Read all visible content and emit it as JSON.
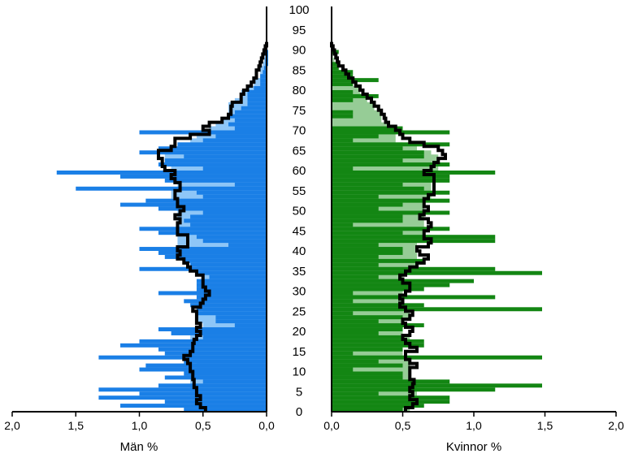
{
  "chart_data": [
    {
      "type": "bar",
      "panel": "left",
      "xlabel": "Män %",
      "xlim": [
        2.0,
        0.0
      ],
      "ylim": [
        0,
        100
      ],
      "xticks": [
        "2,0",
        "1,5",
        "1,0",
        "0,5",
        "0,0"
      ],
      "colors": {
        "dark": "#1a7fe6",
        "light": "#8ec6f7"
      },
      "ages": [
        1,
        2,
        3,
        4,
        5,
        6,
        7,
        8,
        9,
        10,
        11,
        12,
        13,
        14,
        15,
        16,
        17,
        18,
        19,
        20,
        21,
        22,
        23,
        24,
        25,
        26,
        27,
        28,
        29,
        30,
        31,
        32,
        33,
        34,
        35,
        36,
        37,
        38,
        39,
        40,
        41,
        42,
        43,
        44,
        45,
        46,
        47,
        48,
        49,
        50,
        51,
        52,
        53,
        54,
        55,
        56,
        57,
        58,
        59,
        60,
        61,
        62,
        63,
        64,
        65,
        66,
        67,
        68,
        69,
        70,
        71,
        72,
        73,
        74,
        75,
        76,
        77,
        78,
        79,
        80,
        81,
        82,
        83,
        84,
        85,
        86,
        87,
        88,
        89,
        90,
        91,
        92
      ],
      "series": [
        {
          "name": "",
          "values": [
            0.65,
            1.15,
            0.8,
            1.32,
            1.0,
            1.32,
            0.85,
            0.5,
            0.8,
            0.65,
            1.0,
            0.95,
            0.65,
            1.32,
            0.8,
            0.85,
            1.15,
            1.0,
            0.5,
            0.75,
            0.85,
            0.25,
            0.4,
            0.4,
            0.55,
            0.55,
            0.6,
            0.65,
            0.55,
            0.85,
            0.55,
            0.55,
            0.55,
            0.45,
            0.55,
            1.0,
            0.6,
            0.65,
            0.8,
            0.85,
            1.0,
            0.3,
            0.5,
            0.55,
            0.85,
            1.0,
            0.6,
            0.65,
            0.6,
            0.5,
            0.85,
            1.15,
            0.95,
            0.5,
            0.55,
            1.5,
            0.25,
            0.8,
            1.15,
            1.65,
            0.5,
            0.85,
            0.8,
            0.65,
            1.0,
            0.85,
            0.7,
            0.5,
            0.4,
            1.0,
            0.25,
            0.3,
            0.25,
            0.3,
            0.25,
            0.2,
            0.15,
            0.15,
            0.15,
            0.15,
            0.1,
            0.05,
            0.05,
            0.05,
            0.03,
            0.02,
            0.01,
            0.01,
            0.01,
            0.01,
            0.0,
            0.0
          ]
        },
        {
          "name": "",
          "values": [
            0.5,
            0.5,
            0.55,
            0.55,
            0.6,
            0.6,
            0.6,
            0.6,
            0.6,
            0.55,
            0.55,
            0.55,
            0.6,
            0.6,
            0.6,
            0.6,
            0.55,
            0.6,
            0.6,
            0.5,
            0.5,
            0.5,
            0.55,
            0.55,
            0.55,
            0.5,
            0.5,
            0.5,
            0.45,
            0.45,
            0.45,
            0.5,
            0.5,
            0.5,
            0.5,
            0.55,
            0.55,
            0.6,
            0.65,
            0.65,
            0.65,
            0.7,
            0.7,
            0.7,
            0.7,
            0.7,
            0.7,
            0.7,
            0.7,
            0.7,
            0.7,
            0.7,
            0.7,
            0.75,
            0.75,
            0.7,
            0.7,
            0.7,
            0.75,
            0.75,
            0.75,
            0.8,
            0.8,
            0.8,
            0.8,
            0.75,
            0.7,
            0.6,
            0.55,
            0.5,
            0.45,
            0.4,
            0.35,
            0.3,
            0.3,
            0.3,
            0.3,
            0.25,
            0.2,
            0.2,
            0.15,
            0.1,
            0.1,
            0.05,
            0.05,
            0.05,
            0.03,
            0.02,
            0.01,
            0.01,
            0.01,
            0.0
          ]
        }
      ]
    },
    {
      "type": "bar",
      "panel": "right",
      "xlabel": "Kvinnor %",
      "xlim": [
        0.0,
        2.0
      ],
      "ylim": [
        0,
        100
      ],
      "xticks": [
        "0,0",
        "0,5",
        "1,0",
        "1,5",
        "2,0"
      ],
      "colors": {
        "dark": "#138613",
        "light": "#96cc96"
      },
      "ages": [
        1,
        2,
        3,
        4,
        5,
        6,
        7,
        8,
        9,
        10,
        11,
        12,
        13,
        14,
        15,
        16,
        17,
        18,
        19,
        20,
        21,
        22,
        23,
        24,
        25,
        26,
        27,
        28,
        29,
        30,
        31,
        32,
        33,
        34,
        35,
        36,
        37,
        38,
        39,
        40,
        41,
        42,
        43,
        44,
        45,
        46,
        47,
        48,
        49,
        50,
        51,
        52,
        53,
        54,
        55,
        56,
        57,
        58,
        59,
        60,
        61,
        62,
        63,
        64,
        65,
        66,
        67,
        68,
        69,
        70,
        71,
        72,
        73,
        74,
        75,
        76,
        77,
        78,
        79,
        80,
        81,
        82,
        83,
        84,
        85,
        86,
        87,
        88,
        89,
        90,
        91,
        92
      ],
      "series": [
        {
          "name": "",
          "values": [
            0.5,
            0.65,
            0.83,
            0.83,
            0.33,
            1.15,
            1.48,
            0.83,
            0.5,
            0.5,
            0.15,
            0.5,
            0.33,
            1.48,
            0.15,
            0.5,
            0.65,
            0.65,
            0.5,
            0.33,
            0.5,
            0.65,
            0.33,
            0.5,
            0.15,
            1.48,
            0.65,
            0.15,
            1.15,
            0.15,
            0.65,
            0.83,
            1.0,
            0.33,
            1.48,
            1.15,
            0.33,
            0.65,
            0.33,
            0.5,
            0.5,
            0.33,
            1.15,
            1.15,
            0.5,
            0.83,
            0.15,
            0.5,
            0.5,
            0.83,
            0.33,
            0.5,
            0.83,
            0.33,
            0.83,
            0.65,
            0.5,
            0.83,
            0.83,
            1.15,
            0.15,
            0.83,
            0.5,
            0.65,
            0.65,
            0.5,
            0.83,
            0.15,
            0.33,
            0.83,
            0.5,
            0.0,
            0.0,
            0.15,
            0.15,
            0.0,
            0.0,
            0.15,
            0.33,
            0.15,
            0.0,
            0.15,
            0.33,
            0.15,
            0.15,
            0.05,
            0.05,
            0.0,
            0.0,
            0.05,
            0.0,
            0.0
          ]
        },
        {
          "name": "",
          "values": [
            0.55,
            0.55,
            0.55,
            0.55,
            0.6,
            0.6,
            0.6,
            0.55,
            0.55,
            0.55,
            0.55,
            0.55,
            0.55,
            0.5,
            0.5,
            0.5,
            0.5,
            0.55,
            0.55,
            0.5,
            0.5,
            0.5,
            0.5,
            0.55,
            0.55,
            0.5,
            0.5,
            0.5,
            0.5,
            0.5,
            0.5,
            0.5,
            0.5,
            0.5,
            0.5,
            0.55,
            0.6,
            0.6,
            0.6,
            0.6,
            0.6,
            0.6,
            0.65,
            0.65,
            0.65,
            0.65,
            0.65,
            0.65,
            0.65,
            0.65,
            0.65,
            0.65,
            0.65,
            0.7,
            0.7,
            0.7,
            0.7,
            0.7,
            0.7,
            0.7,
            0.75,
            0.75,
            0.75,
            0.75,
            0.7,
            0.6,
            0.5,
            0.45,
            0.45,
            0.45,
            0.4,
            0.4,
            0.35,
            0.35,
            0.35,
            0.3,
            0.3,
            0.25,
            0.25,
            0.2,
            0.2,
            0.15,
            0.15,
            0.1,
            0.1,
            0.05,
            0.03,
            0.02,
            0.01,
            0.01,
            0.0,
            0.0
          ]
        }
      ]
    },
    {
      "type": "line",
      "panel": "left",
      "color": "#000000",
      "ages": [
        1,
        2,
        3,
        4,
        5,
        6,
        7,
        8,
        9,
        10,
        11,
        12,
        13,
        14,
        15,
        16,
        17,
        18,
        19,
        20,
        21,
        22,
        23,
        24,
        25,
        26,
        27,
        28,
        29,
        30,
        31,
        32,
        33,
        34,
        35,
        36,
        37,
        38,
        39,
        40,
        41,
        42,
        43,
        44,
        45,
        46,
        47,
        48,
        49,
        50,
        51,
        52,
        53,
        54,
        55,
        56,
        57,
        58,
        59,
        60,
        61,
        62,
        63,
        64,
        65,
        66,
        67,
        68,
        69,
        70,
        71,
        72,
        73,
        74,
        75,
        76,
        77,
        78,
        79,
        80,
        81,
        82,
        83,
        84,
        85,
        86,
        87,
        88,
        89,
        90,
        91,
        92
      ],
      "values": [
        0.48,
        0.52,
        0.55,
        0.52,
        0.55,
        0.55,
        0.57,
        0.57,
        0.58,
        0.58,
        0.6,
        0.6,
        0.62,
        0.65,
        0.6,
        0.58,
        0.58,
        0.57,
        0.55,
        0.52,
        0.55,
        0.52,
        0.55,
        0.55,
        0.55,
        0.58,
        0.52,
        0.5,
        0.48,
        0.45,
        0.48,
        0.5,
        0.5,
        0.5,
        0.55,
        0.6,
        0.62,
        0.65,
        0.7,
        0.68,
        0.7,
        0.62,
        0.62,
        0.62,
        0.7,
        0.7,
        0.7,
        0.68,
        0.72,
        0.68,
        0.65,
        0.7,
        0.7,
        0.72,
        0.72,
        0.68,
        0.68,
        0.72,
        0.75,
        0.72,
        0.8,
        0.82,
        0.82,
        0.85,
        0.85,
        0.75,
        0.72,
        0.72,
        0.6,
        0.45,
        0.5,
        0.45,
        0.35,
        0.3,
        0.28,
        0.28,
        0.27,
        0.2,
        0.2,
        0.18,
        0.15,
        0.12,
        0.1,
        0.08,
        0.08,
        0.06,
        0.05,
        0.04,
        0.03,
        0.02,
        0.01,
        0.0
      ]
    },
    {
      "type": "line",
      "panel": "right",
      "color": "#000000",
      "ages": [
        1,
        2,
        3,
        4,
        5,
        6,
        7,
        8,
        9,
        10,
        11,
        12,
        13,
        14,
        15,
        16,
        17,
        18,
        19,
        20,
        21,
        22,
        23,
        24,
        25,
        26,
        27,
        28,
        29,
        30,
        31,
        32,
        33,
        34,
        35,
        36,
        37,
        38,
        39,
        40,
        41,
        42,
        43,
        44,
        45,
        46,
        47,
        48,
        49,
        50,
        51,
        52,
        53,
        54,
        55,
        56,
        57,
        58,
        59,
        60,
        61,
        62,
        63,
        64,
        65,
        66,
        67,
        68,
        69,
        70,
        71,
        72,
        73,
        74,
        75,
        76,
        77,
        78,
        79,
        80,
        81,
        82,
        83,
        84,
        85,
        86,
        87,
        88,
        89,
        90,
        91,
        92
      ],
      "values": [
        0.52,
        0.57,
        0.6,
        0.55,
        0.57,
        0.55,
        0.57,
        0.58,
        0.55,
        0.55,
        0.55,
        0.6,
        0.55,
        0.52,
        0.52,
        0.6,
        0.55,
        0.52,
        0.5,
        0.55,
        0.57,
        0.52,
        0.5,
        0.55,
        0.57,
        0.52,
        0.48,
        0.5,
        0.48,
        0.52,
        0.55,
        0.55,
        0.5,
        0.48,
        0.52,
        0.55,
        0.6,
        0.65,
        0.68,
        0.62,
        0.6,
        0.68,
        0.7,
        0.65,
        0.65,
        0.68,
        0.7,
        0.68,
        0.62,
        0.65,
        0.68,
        0.65,
        0.65,
        0.68,
        0.72,
        0.72,
        0.72,
        0.72,
        0.72,
        0.65,
        0.7,
        0.72,
        0.75,
        0.8,
        0.78,
        0.75,
        0.65,
        0.55,
        0.5,
        0.48,
        0.45,
        0.4,
        0.38,
        0.37,
        0.35,
        0.33,
        0.3,
        0.28,
        0.25,
        0.22,
        0.2,
        0.17,
        0.15,
        0.12,
        0.1,
        0.08,
        0.05,
        0.04,
        0.03,
        0.02,
        0.01,
        0.0
      ]
    }
  ],
  "age_axis": {
    "labels": [
      "0",
      "5",
      "10",
      "15",
      "20",
      "25",
      "30",
      "35",
      "40",
      "45",
      "50",
      "55",
      "60",
      "65",
      "70",
      "75",
      "80",
      "85",
      "90",
      "95",
      "100"
    ]
  }
}
